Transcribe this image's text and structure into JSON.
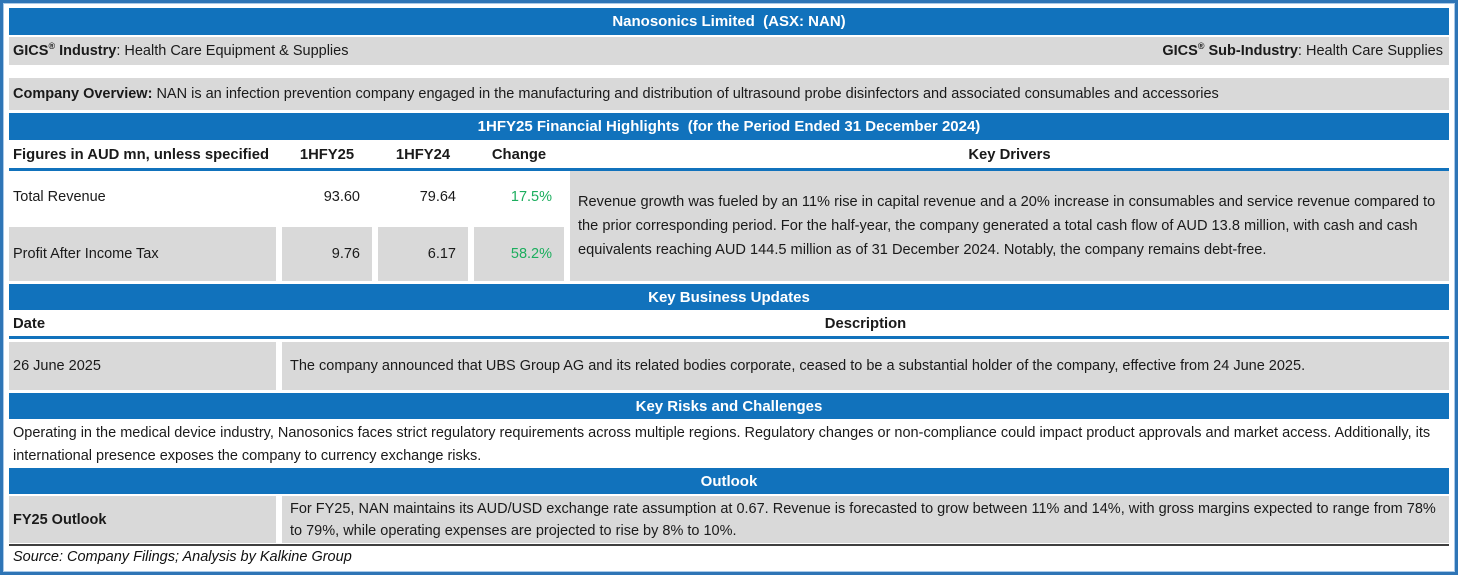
{
  "colors": {
    "accent_blue": "#1172BC",
    "border_blue": "#2E75B6",
    "cell_gray": "#D9D9D9",
    "positive_green": "#1CAE5E"
  },
  "header": {
    "title": "Nanosonics Limited  (ASX: NAN)"
  },
  "gics": {
    "brand": "GICS",
    "reg_mark": "®",
    "industry_label": " Industry",
    "industry_value": ": Health Care Equipment & Supplies",
    "sub_industry_label": " Sub-Industry",
    "sub_industry_value": ": Health Care Supplies"
  },
  "overview": {
    "label": "Company Overview:",
    "text": " NAN is an infection prevention company engaged in the manufacturing and distribution of ultrasound probe disinfectors and associated consumables and accessories"
  },
  "financial_highlights": {
    "section_title": "1HFY25 Financial Highlights  (for the Period Ended 31 December 2024)",
    "columns": {
      "label": "Figures in AUD mn, unless specified",
      "period_current": "1HFY25",
      "period_prior": "1HFY24",
      "change": "Change",
      "key_drivers": "Key Drivers"
    },
    "rows": [
      {
        "label": "Total Revenue",
        "current": "93.60",
        "prior": "79.64",
        "change": "17.5%"
      },
      {
        "label": "Profit After Income Tax",
        "current": "9.76",
        "prior": "6.17",
        "change": "58.2%"
      }
    ],
    "key_drivers_text": "Revenue growth was fueled by an 11% rise in capital revenue and a 20% increase in consumables and service revenue compared to the prior corresponding period. For the half-year, the company generated a total cash flow of AUD 13.8 million, with cash and cash equivalents reaching AUD 144.5 million as of 31 December 2024. Notably, the company remains debt-free."
  },
  "business_updates": {
    "section_title": "Key Business Updates",
    "date_header": "Date",
    "description_header": "Description",
    "rows": [
      {
        "date": "26 June 2025",
        "description": "The company announced that UBS Group AG and its related bodies corporate, ceased to be a substantial holder of the company, effective from 24 June 2025."
      }
    ]
  },
  "risks": {
    "section_title": "Key Risks and Challenges",
    "text": "Operating in the medical device industry, Nanosonics faces strict regulatory requirements across multiple regions. Regulatory changes or non-compliance could impact product approvals and market access. Additionally, its international presence exposes the company to currency exchange risks."
  },
  "outlook": {
    "section_title": "Outlook",
    "label": "FY25 Outlook",
    "text": "For FY25, NAN maintains its AUD/USD exchange rate assumption at 0.67. Revenue is forecasted to grow between 11% and 14%, with gross margins expected to range from 78% to 79%, while operating expenses are projected to rise by 8% to 10%."
  },
  "footer": {
    "source": "Source: Company Filings; Analysis by Kalkine Group"
  }
}
